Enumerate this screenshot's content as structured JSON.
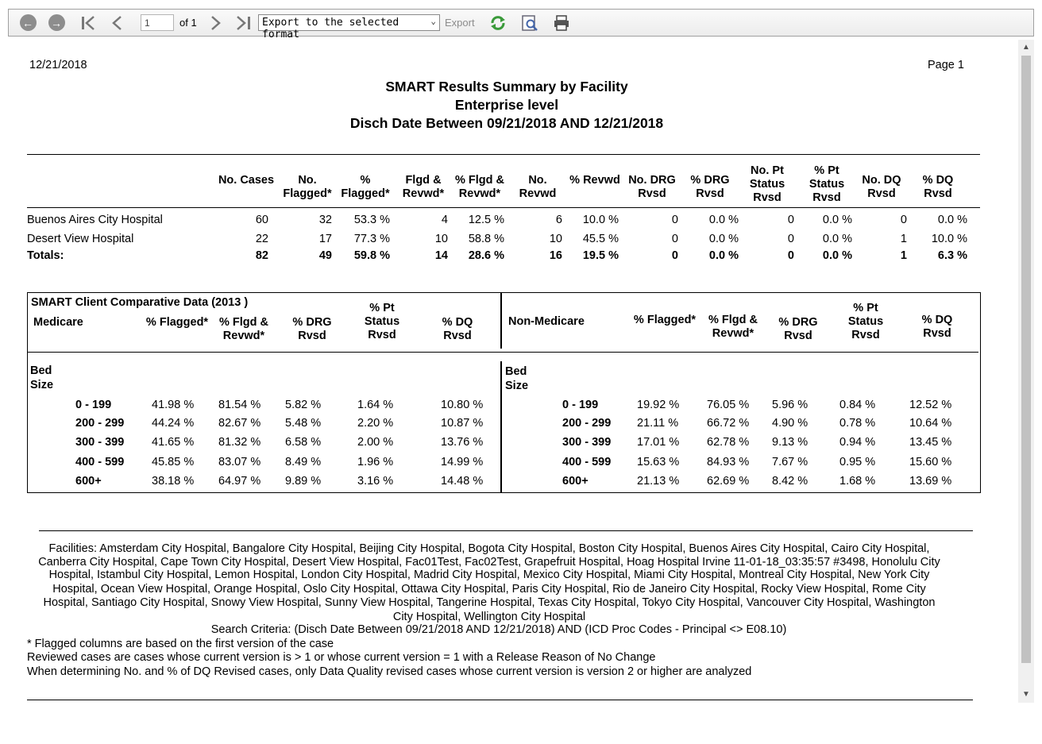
{
  "toolbar": {
    "page_value": "1",
    "of_label": "of 1",
    "export_format": "Export to the selected format",
    "export_label": "Export"
  },
  "report": {
    "date": "12/21/2018",
    "page": "Page 1",
    "title1": "SMART Results Summary by Facility",
    "title2": "Enterprise level",
    "title3": "Disch Date Between 09/21/2018 AND 12/21/2018"
  },
  "summary": {
    "headers": [
      "No. Cases",
      "No. Flagged*",
      "% Flagged*",
      "Flgd & Revwd*",
      "% Flgd & Revwd*",
      "No. Revwd",
      "% Revwd",
      "No. DRG Rvsd",
      "% DRG Rvsd",
      "No. Pt Status Rvsd",
      "% Pt Status Rvsd",
      "No. DQ Rvsd",
      "% DQ Rvsd"
    ],
    "rows": [
      {
        "name": "Buenos Aires City Hospital",
        "values": [
          "60",
          "32",
          "53.3 %",
          "4",
          "12.5 %",
          "6",
          "10.0 %",
          "0",
          "0.0 %",
          "0",
          "0.0 %",
          "0",
          "0.0 %"
        ]
      },
      {
        "name": "Desert View Hospital",
        "values": [
          "22",
          "17",
          "77.3 %",
          "10",
          "58.8 %",
          "10",
          "45.5 %",
          "0",
          "0.0 %",
          "0",
          "0.0 %",
          "1",
          "10.0 %"
        ]
      }
    ],
    "totals": {
      "name": "Totals:",
      "values": [
        "82",
        "49",
        "59.8 %",
        "14",
        "28.6 %",
        "16",
        "19.5 %",
        "0",
        "0.0 %",
        "0",
        "0.0 %",
        "1",
        "6.3 %"
      ]
    }
  },
  "comparative": {
    "title": "SMART Client Comparative Data (2013 )",
    "medicare_label": "Medicare",
    "nonmedicare_label": "Non-Medicare",
    "headers": [
      "% Flagged*",
      "% Flgd & Revwd*",
      "% DRG Rvsd",
      "% Pt Status Rvsd",
      "% DQ Rvsd"
    ],
    "bed_label": "Bed Size",
    "bed_sizes": [
      "0 - 199",
      "200 - 299",
      "300 - 399",
      "400 - 599",
      "600+"
    ],
    "medicare": [
      [
        "41.98 %",
        "81.54 %",
        "5.82 %",
        "1.64 %",
        "10.80 %"
      ],
      [
        "44.24 %",
        "82.67 %",
        "5.48 %",
        "2.20 %",
        "10.87 %"
      ],
      [
        "41.65 %",
        "81.32 %",
        "6.58 %",
        "2.00 %",
        "13.76 %"
      ],
      [
        "45.85 %",
        "83.07 %",
        "8.49 %",
        "1.96 %",
        "14.99 %"
      ],
      [
        "38.18 %",
        "64.97 %",
        "9.89 %",
        "3.16 %",
        "14.48 %"
      ]
    ],
    "nonmedicare": [
      [
        "19.92 %",
        "76.05 %",
        "5.96 %",
        "0.84 %",
        "12.52 %"
      ],
      [
        "21.11 %",
        "66.72 %",
        "4.90 %",
        "0.78 %",
        "10.64 %"
      ],
      [
        "17.01 %",
        "62.78 %",
        "9.13 %",
        "0.94 %",
        "13.45 %"
      ],
      [
        "15.63 %",
        "84.93 %",
        "7.67 %",
        "0.95 %",
        "15.60 %"
      ],
      [
        "21.13 %",
        "62.69 %",
        "8.42 %",
        "1.68 %",
        "13.69 %"
      ]
    ]
  },
  "footer": {
    "facilities_lines": [
      "Facilities: Amsterdam City Hospital, Bangalore City Hospital, Beijing City Hospital, Bogota City Hospital, Boston City Hospital, Buenos Aires City Hospital, Cairo City Hospital,",
      "Canberra City Hospital, Cape Town City Hospital, Desert View Hospital, Fac01Test, Fac02Test, Grapefruit Hospital, Hoag Hospital Irvine 11-01-18_03:35:57 #3498, Honolulu City",
      "Hospital, Istambul City Hospital, Lemon Hospital, London City Hospital, Madrid City Hospital, Mexico City Hospital, Miami City Hospital, Montreal City Hospital, New York City",
      "Hospital, Ocean View Hospital, Orange Hospital, Oslo City Hospital, Ottawa City Hospital, Paris City Hospital, Rio de Janeiro City Hospital, Rocky View Hospital, Rome City",
      "Hospital, Santiago City Hospital, Snowy View Hospital, Sunny View Hospital, Tangerine Hospital, Texas City Hospital, Tokyo City Hospital, Vancouver City Hospital, Washington",
      "City Hospital, Wellington City Hospital"
    ],
    "search_criteria": "Search Criteria:  (Disch Date Between 09/21/2018 AND 12/21/2018)  AND (ICD Proc Codes - Principal <> E08.10)",
    "notes": [
      "* Flagged columns are based on the first version of the case",
      "Reviewed cases are cases whose current version is > 1 or whose current version = 1 with a Release Reason of No Change",
      "When determining No. and % of DQ Revised cases, only Data Quality revised cases whose current version is version 2 or higher are analyzed"
    ]
  }
}
